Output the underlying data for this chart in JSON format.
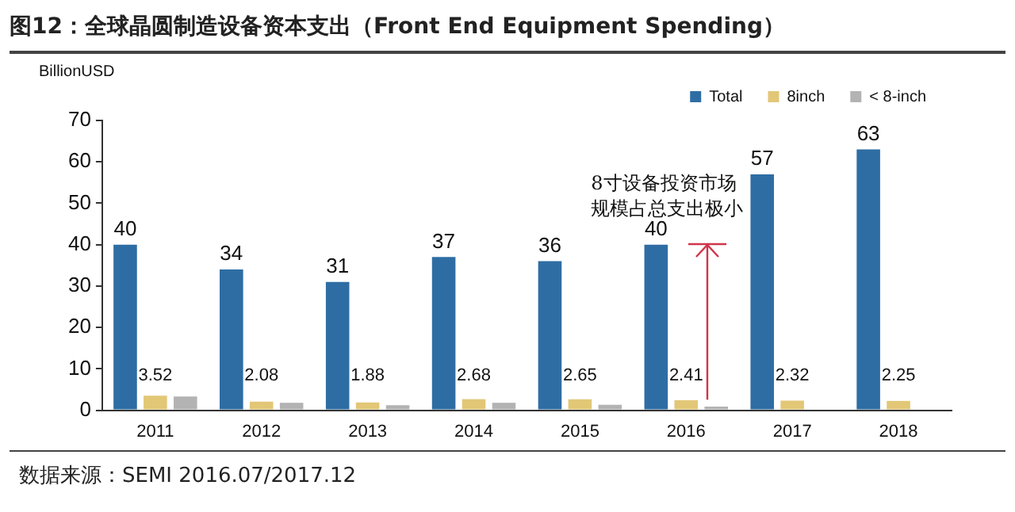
{
  "chart_data": {
    "type": "bar",
    "title": "图12：全球晶圆制造设备资本支出（Front End Equipment Spending）",
    "ylabel": "BillionUSD",
    "categories": [
      "2011",
      "2012",
      "2013",
      "2014",
      "2015",
      "2016",
      "2017",
      "2018"
    ],
    "series": [
      {
        "name": "Total",
        "color": "#2e6da4",
        "values": [
          40,
          34,
          31,
          37,
          36,
          40,
          57,
          63
        ],
        "value_labels": [
          "40",
          "34",
          "31",
          "37",
          "36",
          "40",
          "57",
          "63"
        ]
      },
      {
        "name": "8inch",
        "color": "#e2c777",
        "values": [
          3.52,
          2.08,
          1.88,
          2.68,
          2.65,
          2.41,
          2.32,
          2.25
        ],
        "value_labels": [
          "3.52",
          "2.08",
          "1.88",
          "2.68",
          "2.65",
          "2.41",
          "2.32",
          "2.25"
        ]
      },
      {
        "name": "< 8-inch",
        "color": "#b3b3b3",
        "values": [
          3.3,
          1.8,
          1.2,
          1.8,
          1.3,
          0.9,
          null,
          null
        ]
      }
    ],
    "ylim": [
      0,
      70
    ],
    "yticks": [
      0,
      10,
      20,
      30,
      40,
      50,
      60,
      70
    ],
    "grid": false,
    "legend": "top right",
    "annotations": [
      "8寸设备投资市场规模占总支出极小",
      "数据来源：SEMI 2016.07/2017.12"
    ]
  }
}
